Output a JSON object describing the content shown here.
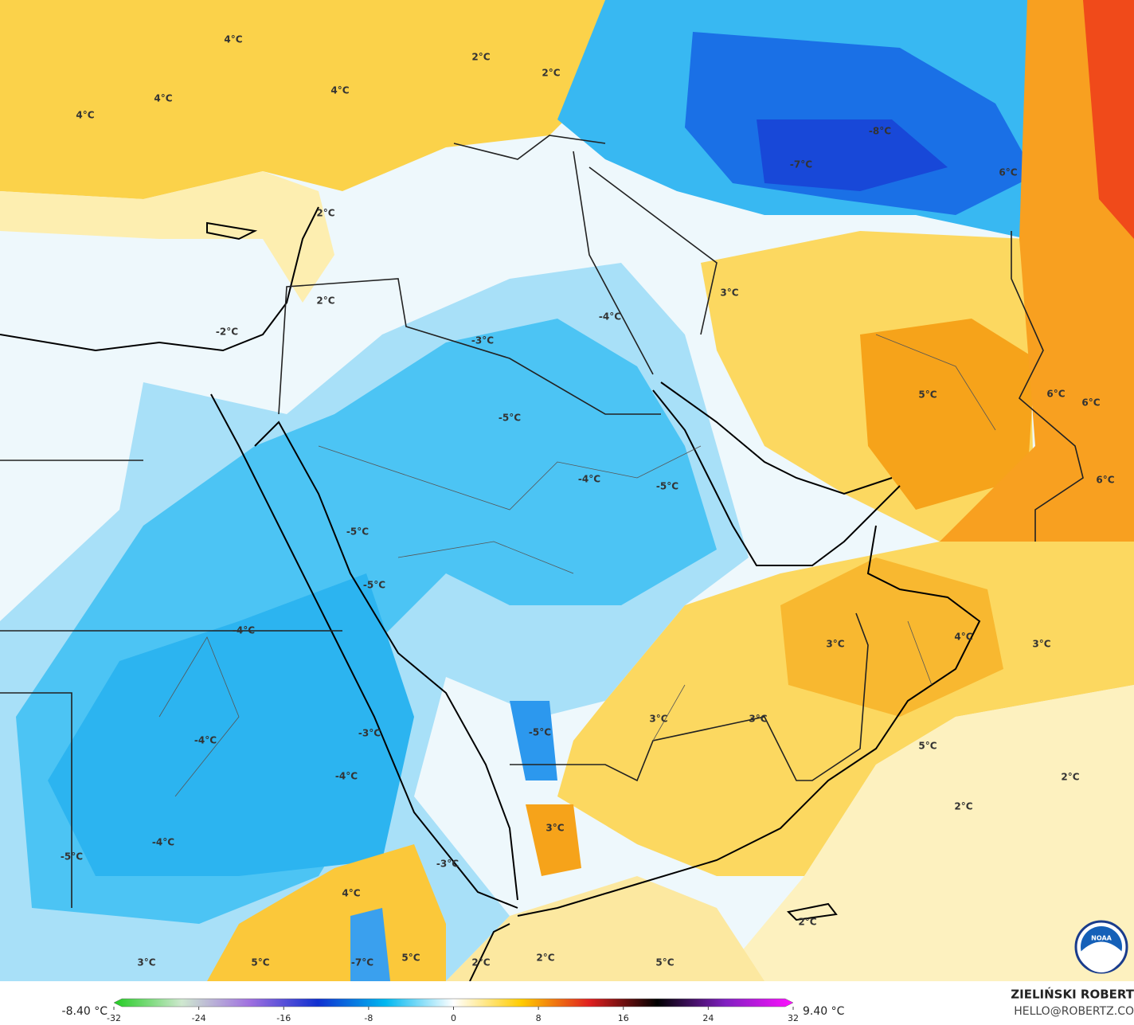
{
  "map": {
    "labels": [
      "4°C",
      "2°C",
      "2°C",
      "4°C",
      "4°C",
      "4°C",
      "-8°C",
      "-7°C",
      "6°C",
      "2°C",
      "3°C",
      "2°C",
      "-4°C",
      "-2°C",
      "-3°C",
      "5°C",
      "6°C",
      "6°C",
      "-5°C",
      "-4°C",
      "-5°C",
      "6°C",
      "-5°C",
      "-5°C",
      "-4°C",
      "3°C",
      "4°C",
      "3°C",
      "3°C",
      "3°C",
      "-3°C",
      "-5°C",
      "-4°C",
      "5°C",
      "-4°C",
      "2°C",
      "2°C",
      "3°C",
      "-4°C",
      "-5°C",
      "-3°C",
      "4°C",
      "2°C",
      "3°C",
      "5°C",
      "-7°C",
      "5°C",
      "2°C",
      "2°C",
      "5°C"
    ]
  },
  "colorbar": {
    "min_label": "-8.40 °C",
    "max_label": "9.40 °C",
    "ticks": [
      -32,
      -24,
      -16,
      -8,
      0,
      8,
      16,
      24,
      32
    ],
    "colors": [
      "#22cc22",
      "#cfe8cf",
      "#a070e0",
      "#1030d0",
      "#00b8f0",
      "#ffffff",
      "#ffcc00",
      "#e02020",
      "#000000",
      "#8020c0",
      "#ff10ff"
    ]
  },
  "credit": {
    "name": "ZIELIŃSKI ROBERT",
    "contact": "HELLO@ROBERTZ.CO"
  },
  "logo": "NOAA"
}
